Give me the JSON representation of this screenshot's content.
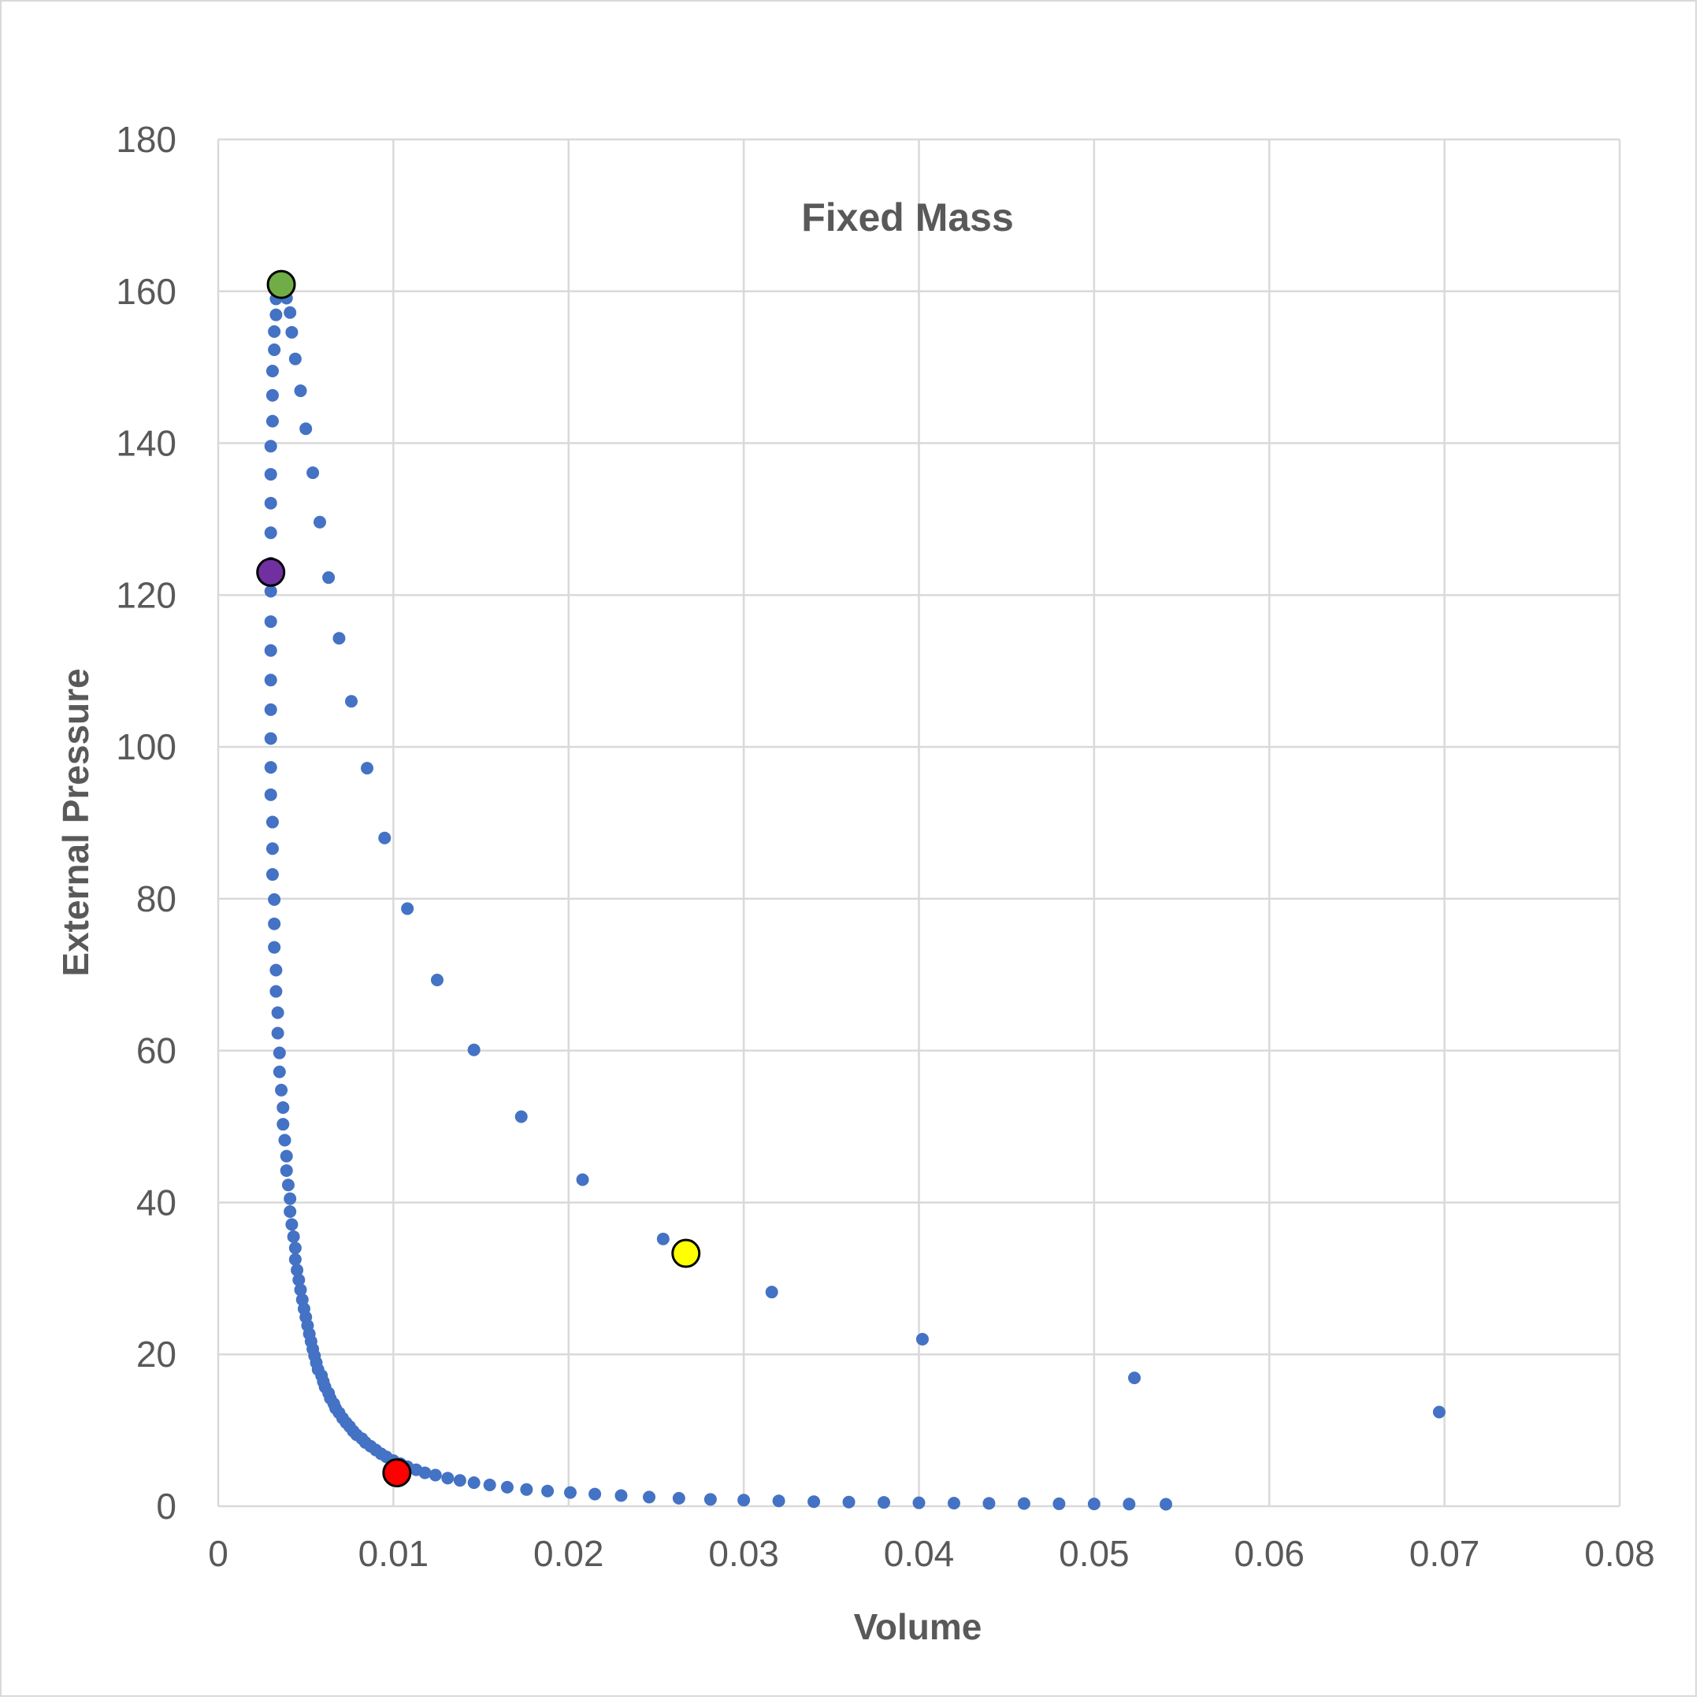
{
  "chart_data": {
    "type": "scatter",
    "title": "Fixed Mass",
    "xlabel": "Volume",
    "ylabel": "External Pressure",
    "xlim": [
      0,
      0.08
    ],
    "ylim": [
      0,
      180
    ],
    "x_ticks": [
      "0",
      "0.01",
      "0.02",
      "0.03",
      "0.04",
      "0.05",
      "0.06",
      "0.07",
      "0.08"
    ],
    "y_ticks": [
      "0",
      "20",
      "40",
      "60",
      "80",
      "100",
      "120",
      "140",
      "160",
      "180"
    ],
    "grid": true,
    "legend": "none",
    "colors": {
      "series": "#4472c4",
      "grid": "#d9d9d9",
      "text": "#595959",
      "highlight_green": "#70ad47",
      "highlight_purple": "#7030a0",
      "highlight_yellow": "#ffff00",
      "highlight_red": "#ff0000"
    },
    "series": [
      {
        "values": [
          [
            0.0697,
            12.4
          ],
          [
            0.0523,
            16.9
          ],
          [
            0.0402,
            22.0
          ],
          [
            0.0316,
            28.2
          ],
          [
            0.0254,
            35.2
          ],
          [
            0.0208,
            43.0
          ],
          [
            0.0173,
            51.3
          ],
          [
            0.0146,
            60.1
          ],
          [
            0.0125,
            69.3
          ],
          [
            0.0108,
            78.7
          ],
          [
            0.0095,
            88.0
          ],
          [
            0.0085,
            97.2
          ],
          [
            0.0076,
            106.0
          ],
          [
            0.0069,
            114.3
          ],
          [
            0.0063,
            122.3
          ],
          [
            0.0058,
            129.6
          ],
          [
            0.0054,
            136.1
          ],
          [
            0.005,
            141.9
          ],
          [
            0.0047,
            146.9
          ],
          [
            0.0044,
            151.1
          ],
          [
            0.0042,
            154.6
          ],
          [
            0.0041,
            157.2
          ],
          [
            0.0039,
            159.1
          ],
          [
            0.0037,
            160.3
          ],
          [
            0.0036,
            160.9
          ]
        ]
      },
      {
        "values": [
          [
            0.0036,
            160.9
          ],
          [
            0.0034,
            160.5
          ],
          [
            0.0033,
            159.0
          ],
          [
            0.0033,
            156.9
          ],
          [
            0.0032,
            154.7
          ],
          [
            0.0032,
            152.3
          ],
          [
            0.0031,
            149.5
          ],
          [
            0.0031,
            146.3
          ],
          [
            0.0031,
            142.9
          ],
          [
            0.003,
            139.6
          ],
          [
            0.003,
            135.9
          ],
          [
            0.003,
            132.1
          ],
          [
            0.003,
            128.2
          ],
          [
            0.003,
            124.2
          ],
          [
            0.003,
            120.5
          ],
          [
            0.003,
            116.5
          ],
          [
            0.003,
            112.7
          ],
          [
            0.003,
            108.8
          ],
          [
            0.003,
            104.9
          ],
          [
            0.003,
            101.1
          ],
          [
            0.003,
            97.3
          ],
          [
            0.003,
            93.7
          ],
          [
            0.0031,
            90.1
          ],
          [
            0.0031,
            86.6
          ],
          [
            0.0031,
            83.2
          ],
          [
            0.0032,
            79.9
          ],
          [
            0.0032,
            76.7
          ],
          [
            0.0032,
            73.6
          ],
          [
            0.0033,
            70.6
          ],
          [
            0.0033,
            67.8
          ],
          [
            0.0034,
            65.0
          ],
          [
            0.0034,
            62.3
          ],
          [
            0.0035,
            59.7
          ],
          [
            0.0035,
            57.2
          ],
          [
            0.0036,
            54.8
          ],
          [
            0.0037,
            52.5
          ],
          [
            0.0037,
            50.3
          ],
          [
            0.0038,
            48.2
          ],
          [
            0.0039,
            46.1
          ],
          [
            0.0039,
            44.2
          ],
          [
            0.004,
            42.3
          ],
          [
            0.0041,
            40.5
          ],
          [
            0.0041,
            38.8
          ],
          [
            0.0042,
            37.1
          ],
          [
            0.0043,
            35.5
          ],
          [
            0.0044,
            34.0
          ],
          [
            0.0044,
            32.5
          ],
          [
            0.0045,
            31.1
          ],
          [
            0.0046,
            29.8
          ],
          [
            0.0047,
            28.5
          ],
          [
            0.0048,
            27.2
          ],
          [
            0.0049,
            26.0
          ],
          [
            0.005,
            24.9
          ],
          [
            0.0051,
            23.8
          ],
          [
            0.0052,
            22.7
          ],
          [
            0.0053,
            21.7
          ],
          [
            0.0054,
            20.7
          ],
          [
            0.0055,
            19.8
          ],
          [
            0.0056,
            18.9
          ],
          [
            0.0057,
            18.0
          ],
          [
            0.0059,
            17.2
          ],
          [
            0.006,
            16.4
          ],
          [
            0.0061,
            15.7
          ],
          [
            0.0063,
            14.9
          ],
          [
            0.0064,
            14.2
          ],
          [
            0.0066,
            13.5
          ],
          [
            0.0067,
            12.9
          ],
          [
            0.0069,
            12.3
          ],
          [
            0.0071,
            11.6
          ],
          [
            0.0073,
            11.0
          ],
          [
            0.0075,
            10.5
          ],
          [
            0.0077,
            9.9
          ],
          [
            0.0079,
            9.4
          ],
          [
            0.0082,
            8.9
          ],
          [
            0.0084,
            8.4
          ],
          [
            0.0087,
            7.9
          ],
          [
            0.009,
            7.4
          ],
          [
            0.0093,
            6.9
          ],
          [
            0.0096,
            6.5
          ],
          [
            0.01,
            6.0
          ],
          [
            0.0104,
            5.6
          ],
          [
            0.0108,
            5.2
          ],
          [
            0.0113,
            4.8
          ],
          [
            0.0118,
            4.4
          ],
          [
            0.0124,
            4.1
          ],
          [
            0.0131,
            3.7
          ],
          [
            0.0138,
            3.4
          ],
          [
            0.0146,
            3.1
          ],
          [
            0.0155,
            2.8
          ],
          [
            0.0165,
            2.5
          ],
          [
            0.0176,
            2.2
          ],
          [
            0.0188,
            2.0
          ],
          [
            0.0201,
            1.8
          ],
          [
            0.0215,
            1.6
          ],
          [
            0.023,
            1.4
          ],
          [
            0.0246,
            1.2
          ],
          [
            0.0263,
            1.05
          ],
          [
            0.0281,
            0.9
          ],
          [
            0.03,
            0.8
          ],
          [
            0.032,
            0.7
          ],
          [
            0.034,
            0.6
          ],
          [
            0.036,
            0.55
          ],
          [
            0.038,
            0.5
          ],
          [
            0.04,
            0.45
          ],
          [
            0.042,
            0.4
          ],
          [
            0.044,
            0.38
          ],
          [
            0.046,
            0.35
          ],
          [
            0.048,
            0.32
          ],
          [
            0.05,
            0.3
          ],
          [
            0.052,
            0.28
          ],
          [
            0.0541,
            0.26
          ]
        ]
      }
    ],
    "highlight_points": [
      {
        "x": 0.0036,
        "y": 160.9,
        "color": "#70ad47"
      },
      {
        "x": 0.003,
        "y": 123.0,
        "color": "#7030a0"
      },
      {
        "x": 0.0267,
        "y": 33.3,
        "color": "#ffff00"
      },
      {
        "x": 0.0102,
        "y": 4.4,
        "color": "#ff0000"
      }
    ]
  }
}
